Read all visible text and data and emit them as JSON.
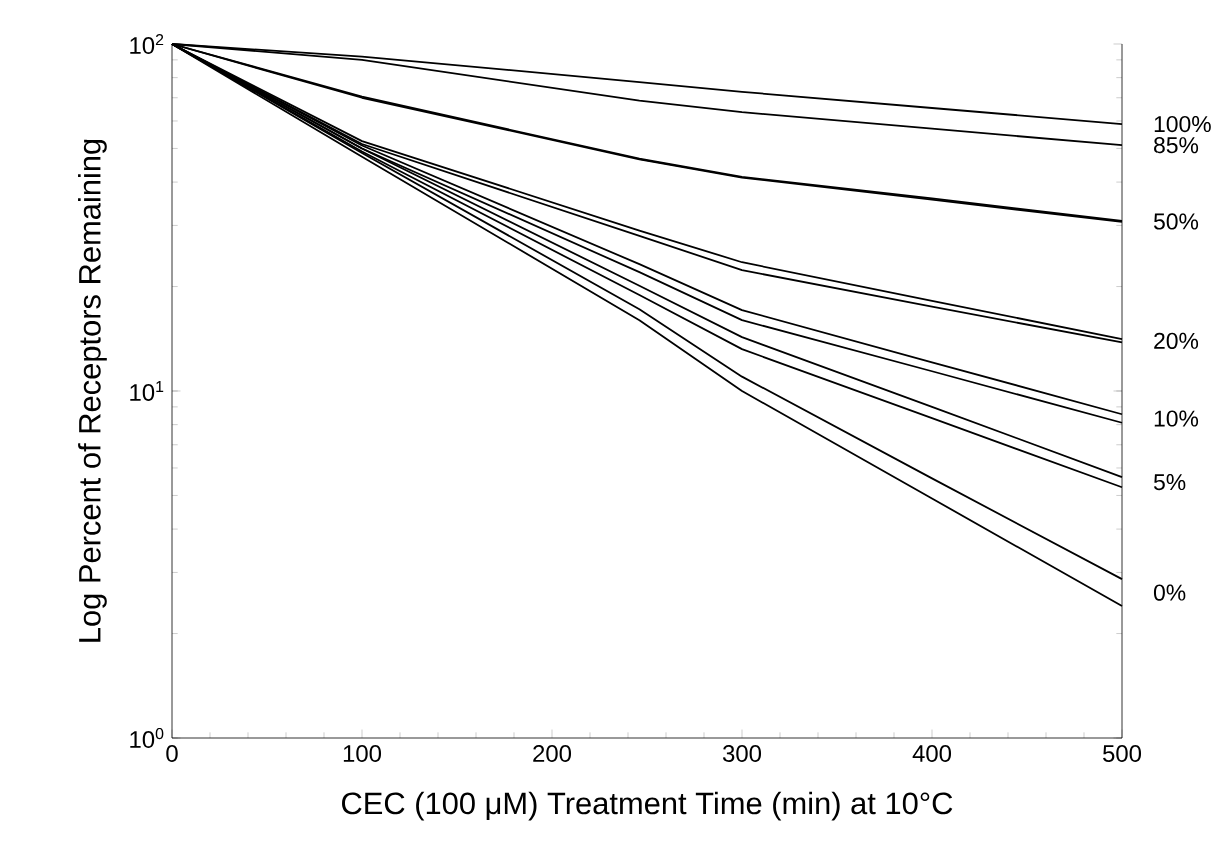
{
  "chart_data": {
    "type": "line",
    "xlabel": "CEC (100 μM) Treatment Time (min) at 10°C",
    "ylabel": "Log Percent of Receptors Remaining",
    "x": [
      0,
      100,
      246,
      300,
      400,
      500
    ],
    "series": [
      {
        "color": "#000000",
        "values": [
          100,
          92,
          77.7,
          72.8,
          65.4,
          58.8
        ]
      },
      {
        "color": "#000000",
        "values": [
          100,
          90,
          68.7,
          63.6,
          57.0,
          51.1
        ]
      },
      {
        "color": "#000000",
        "values": [
          100,
          70.5,
          46.7,
          41.4,
          35.9,
          30.9
        ]
      },
      {
        "color": "#000000",
        "values": [
          100,
          70,
          46.5,
          41.2,
          35.6,
          30.7
        ]
      },
      {
        "color": "#000000",
        "values": [
          100,
          52.5,
          29.0,
          23.5,
          18.2,
          14.1
        ]
      },
      {
        "color": "#000000",
        "values": [
          100,
          51.5,
          28.0,
          22.3,
          17.5,
          13.8
        ]
      },
      {
        "color": "#000000",
        "values": [
          100,
          51,
          23.2,
          17.1,
          12.1,
          8.57
        ]
      },
      {
        "color": "#000000",
        "values": [
          100,
          50,
          22.0,
          16.0,
          11.4,
          8.1
        ]
      },
      {
        "color": "#000000",
        "values": [
          100,
          50,
          20.1,
          14.3,
          9.0,
          5.65
        ]
      },
      {
        "color": "#000000",
        "values": [
          100,
          49,
          18.9,
          13.2,
          8.35,
          5.28
        ]
      },
      {
        "color": "#000000",
        "values": [
          100,
          48.5,
          17.2,
          11.0,
          5.6,
          2.87
        ]
      },
      {
        "color": "#000000",
        "values": [
          100,
          47.3,
          16.0,
          10.0,
          4.9,
          2.4
        ]
      }
    ],
    "xlim": [
      0,
      500
    ],
    "ylim": [
      1,
      100
    ],
    "log": "y",
    "xticks": [
      0,
      100,
      200,
      300,
      400,
      500
    ],
    "yticks": [
      {
        "value": 1,
        "label": "10$^{0}$"
      },
      {
        "value": 10,
        "label": "10$^{1}$"
      },
      {
        "value": 100,
        "label": "10$^{2}$"
      }
    ],
    "grid": false,
    "marker": "none",
    "line_style": "solid",
    "annotations": [
      "100%",
      "85%",
      "50%",
      "20%",
      "10%",
      "5%",
      "0%"
    ]
  }
}
